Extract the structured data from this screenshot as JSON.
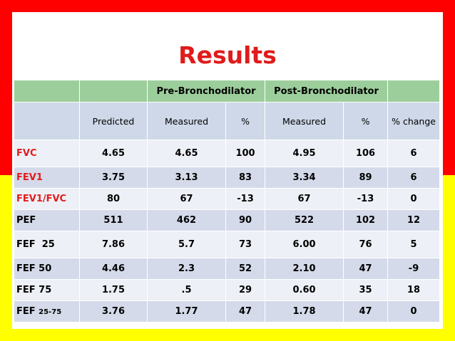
{
  "title": "Results",
  "header_groups": {
    "pre": "Pre-Bronchodilator",
    "post": "Post-Bronchodilator"
  },
  "columns": [
    "Predicted",
    "Measured",
    "%",
    "Measured",
    "%",
    "% change"
  ],
  "rows": [
    {
      "label": "FVC",
      "label_sub": "",
      "values": [
        "4.65",
        "4.65",
        "100",
        "4.95",
        "106",
        "6"
      ]
    },
    {
      "label": "FEV1",
      "label_sub": "",
      "values": [
        "3.75",
        "3.13",
        "83",
        "3.34",
        "89",
        "6"
      ]
    },
    {
      "label": "FEV1/FVC",
      "label_sub": "",
      "values": [
        "80",
        "67",
        "-13",
        "67",
        "-13",
        "0"
      ]
    },
    {
      "label": "PEF",
      "label_sub": "",
      "values": [
        "511",
        "462",
        "90",
        "522",
        "102",
        "12"
      ]
    },
    {
      "label": "FEF  25",
      "label_sub": "",
      "values": [
        "7.86",
        "5.7",
        "73",
        "6.00",
        "76",
        "5"
      ]
    },
    {
      "label": "FEF 50",
      "label_sub": "",
      "values": [
        "4.46",
        "2.3",
        "52",
        "2.10",
        "47",
        "-9"
      ]
    },
    {
      "label": "FEF 75",
      "label_sub": "",
      "values": [
        "1.75",
        ".5",
        "29",
        "0.60",
        "35",
        "18"
      ]
    },
    {
      "label": "FEF ",
      "label_sub": "25-75",
      "values": [
        "3.76",
        "1.77",
        "47",
        "1.78",
        "47",
        "0"
      ]
    }
  ],
  "colors": {
    "top_band": "#fe0000",
    "bottom_band": "#ffff00",
    "title": "#e01b1b",
    "header_green": "#9cce9c",
    "header_blue": "#cfd8e8",
    "row_light": "#eef0f7",
    "row_dark": "#d4dae9",
    "red_label": "#e31a1a"
  }
}
